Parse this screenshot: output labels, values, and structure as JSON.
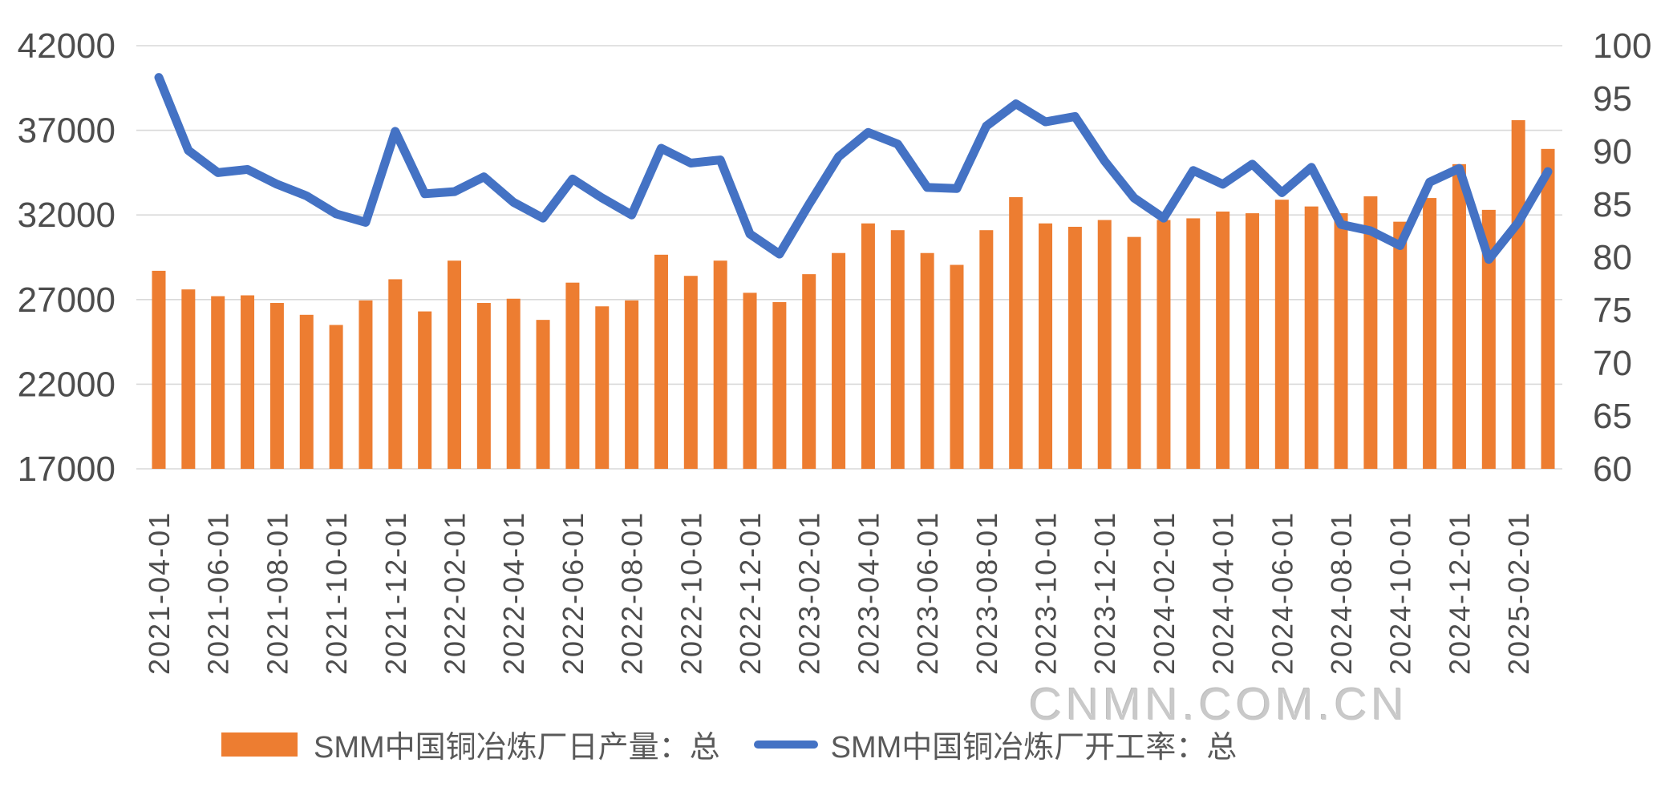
{
  "watermark": "CNMN.COM.CN",
  "legend": {
    "items": [
      {
        "label": "SMM中国铜冶炼厂日产量：总",
        "swatch": "bar-swatch",
        "color": "#ED7D31"
      },
      {
        "label": "SMM中国铜冶炼厂开工率：总",
        "swatch": "line-swatch",
        "color": "#4472C4"
      }
    ]
  },
  "chart_data": {
    "type": "bar",
    "subtype": "combo-bar-line-dual-axis",
    "title": "",
    "xlabel": "",
    "ylabel": "",
    "grid": true,
    "legend_position": "bottom",
    "x": [
      "2021-04-01",
      "2021-05-01",
      "2021-06-01",
      "2021-07-01",
      "2021-08-01",
      "2021-09-01",
      "2021-10-01",
      "2021-11-01",
      "2021-12-01",
      "2022-01-01",
      "2022-02-01",
      "2022-03-01",
      "2022-04-01",
      "2022-05-01",
      "2022-06-01",
      "2022-07-01",
      "2022-08-01",
      "2022-09-01",
      "2022-10-01",
      "2022-11-01",
      "2022-12-01",
      "2023-01-01",
      "2023-02-01",
      "2023-03-01",
      "2023-04-01",
      "2023-05-01",
      "2023-06-01",
      "2023-07-01",
      "2023-08-01",
      "2023-09-01",
      "2023-10-01",
      "2023-11-01",
      "2023-12-01",
      "2024-01-01",
      "2024-02-01",
      "2024-03-01",
      "2024-04-01",
      "2024-05-01",
      "2024-06-01",
      "2024-07-01",
      "2024-08-01",
      "2024-09-01",
      "2024-10-01",
      "2024-11-01",
      "2024-12-01",
      "2025-01-01",
      "2025-02-01",
      "2025-03-01"
    ],
    "x_tick_every": 2,
    "series": [
      {
        "name": "SMM中国铜冶炼厂日产量：总",
        "type": "bar",
        "axis": "left",
        "color": "#ED7D31",
        "values": [
          28700,
          27600,
          27200,
          27250,
          26800,
          26100,
          25500,
          26950,
          28200,
          26300,
          29300,
          26800,
          27050,
          25800,
          28000,
          26600,
          26950,
          29650,
          28400,
          29300,
          27400,
          26850,
          28500,
          29750,
          31500,
          31100,
          29750,
          29050,
          31100,
          33050,
          31500,
          31300,
          31700,
          30700,
          31700,
          31800,
          32200,
          32100,
          32900,
          32500,
          32100,
          33100,
          31600,
          33000,
          35000,
          32300,
          37600,
          35900
        ]
      },
      {
        "name": "SMM中国铜冶炼厂开工率：总",
        "type": "line",
        "axis": "right",
        "color": "#4472C4",
        "values": [
          97.0,
          90.1,
          88.0,
          88.3,
          86.9,
          85.8,
          84.1,
          83.3,
          91.9,
          86.0,
          86.2,
          87.6,
          85.2,
          83.7,
          87.4,
          85.6,
          84.0,
          90.3,
          88.9,
          89.2,
          82.2,
          80.3,
          85.0,
          89.5,
          91.8,
          90.7,
          86.6,
          86.5,
          92.4,
          94.5,
          92.8,
          93.3,
          89.1,
          85.6,
          83.7,
          88.2,
          86.9,
          88.8,
          86.1,
          88.5,
          83.1,
          82.5,
          81.1,
          87.1,
          88.4,
          79.8,
          83.3,
          88.1
        ]
      }
    ],
    "left_axis": {
      "min": 17000,
      "max": 42000,
      "step": 5000,
      "ticks": [
        "42000",
        "37000",
        "32000",
        "27000",
        "22000",
        "17000"
      ]
    },
    "right_axis": {
      "min": 60,
      "max": 100,
      "step": 5,
      "ticks": [
        "100",
        "95",
        "90",
        "85",
        "80",
        "75",
        "70",
        "65",
        "60"
      ]
    },
    "gridline_color": "#D9D9D9",
    "tick_label_color": "#4d4d4d"
  }
}
